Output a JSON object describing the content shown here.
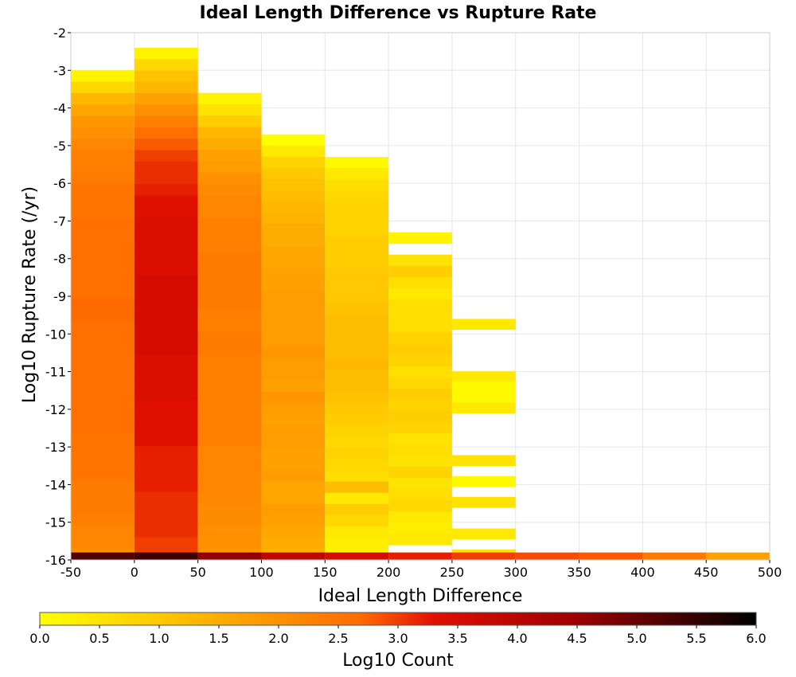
{
  "chart_data": {
    "type": "heatmap",
    "title": "Ideal Length Difference vs Rupture Rate",
    "xlabel": "Ideal Length Difference",
    "ylabel": "Log10 Rupture Rate (/yr)",
    "xlim": [
      -50,
      500
    ],
    "ylim": [
      -16,
      -2
    ],
    "x_ticks": [
      "-50",
      "0",
      "50",
      "100",
      "150",
      "200",
      "250",
      "300",
      "350",
      "400",
      "450",
      "500"
    ],
    "y_ticks": [
      "-2",
      "-3",
      "-4",
      "-5",
      "-6",
      "-7",
      "-8",
      "-9",
      "-10",
      "-11",
      "-12",
      "-13",
      "-14",
      "-15",
      "-16"
    ],
    "grid": true,
    "colorbar": {
      "label": "Log10 Count",
      "min": 0.0,
      "max": 6.0,
      "ticks": [
        "0.0",
        "0.5",
        "1.0",
        "1.5",
        "2.0",
        "2.5",
        "3.0",
        "3.5",
        "4.0",
        "4.5",
        "5.0",
        "5.5",
        "6.0"
      ],
      "colormap": "hot (reversed): yellow to red to black"
    },
    "bin_width_x": 50,
    "bin_height_y": 0.3,
    "bins": [
      {
        "x_start": -50,
        "y_top": -3.0,
        "y_bottom": -16.0,
        "values": [
          0.2,
          0.7,
          1.3,
          1.6,
          1.9,
          2.0,
          2.2,
          2.3,
          2.3,
          2.4,
          2.5,
          2.5,
          2.5,
          2.6,
          2.6,
          2.6,
          2.6,
          2.6,
          2.6,
          2.6,
          2.7,
          2.7,
          2.6,
          2.6,
          2.6,
          2.6,
          2.6,
          2.6,
          2.6,
          2.6,
          2.6,
          2.6,
          2.5,
          2.5,
          2.5,
          2.5,
          2.4,
          2.4,
          2.4,
          2.3,
          2.2,
          2.2,
          2.0
        ]
      },
      {
        "x_start": 0,
        "y_top": -2.4,
        "y_bottom": -16.0,
        "values": [
          0.2,
          0.7,
          1.1,
          1.3,
          1.7,
          2.0,
          2.3,
          2.6,
          2.8,
          3.0,
          3.1,
          3.1,
          3.2,
          3.3,
          3.3,
          3.4,
          3.4,
          3.4,
          3.4,
          3.4,
          3.5,
          3.5,
          3.5,
          3.5,
          3.5,
          3.5,
          3.5,
          3.4,
          3.4,
          3.4,
          3.4,
          3.3,
          3.3,
          3.3,
          3.3,
          3.2,
          3.2,
          3.2,
          3.2,
          3.1,
          3.1,
          3.1,
          3.1,
          3.0,
          3.0
        ]
      },
      {
        "x_start": 50,
        "y_top": -3.6,
        "y_bottom": -16.0,
        "values": [
          0.2,
          0.5,
          0.9,
          1.3,
          1.5,
          1.7,
          1.8,
          2.0,
          2.1,
          2.2,
          2.2,
          2.3,
          2.3,
          2.3,
          2.4,
          2.4,
          2.4,
          2.4,
          2.4,
          2.3,
          2.3,
          2.4,
          2.4,
          2.3,
          2.3,
          2.3,
          2.3,
          2.3,
          2.3,
          2.3,
          2.3,
          2.2,
          2.2,
          2.2,
          2.2,
          2.2,
          2.1,
          2.1,
          2.0,
          2.0,
          1.9
        ]
      },
      {
        "x_start": 100,
        "y_top": -4.7,
        "y_bottom": -16.0,
        "values": [
          0.0,
          0.4,
          0.8,
          1.0,
          1.1,
          1.2,
          1.3,
          1.4,
          1.5,
          1.5,
          1.6,
          1.6,
          1.7,
          1.7,
          1.8,
          1.8,
          1.8,
          1.8,
          1.8,
          1.9,
          1.8,
          1.8,
          1.7,
          1.9,
          1.8,
          1.7,
          1.8,
          1.8,
          1.7,
          1.7,
          1.8,
          1.6,
          1.6,
          1.8,
          1.7,
          1.6,
          1.5,
          1.4
        ]
      },
      {
        "x_start": 150,
        "y_top": -5.3,
        "y_bottom": -16.0,
        "values": [
          0.1,
          0.4,
          0.6,
          0.7,
          0.8,
          0.8,
          0.8,
          0.9,
          0.9,
          0.9,
          1.0,
          1.0,
          1.0,
          1.1,
          1.2,
          1.2,
          1.2,
          1.2,
          1.3,
          1.2,
          1.2,
          1.1,
          1.0,
          0.9,
          0.8,
          0.7,
          0.8,
          0.7,
          0.6,
          1.2,
          0.4,
          0.9,
          0.7,
          0.4,
          0.3,
          0.2
        ]
      },
      {
        "x_start": 200,
        "y_top": -7.3,
        "y_bottom": -15.6,
        "values": [
          0.2,
          null,
          0.5,
          0.9,
          0.6,
          0.4,
          0.6,
          0.6,
          0.6,
          0.8,
          0.9,
          0.8,
          0.6,
          0.7,
          0.9,
          0.8,
          0.9,
          0.8,
          0.5,
          0.6,
          0.5,
          0.8,
          0.5,
          0.6,
          0.7,
          0.4,
          0.3,
          0.4
        ]
      },
      {
        "x_start": 250,
        "y_top": -9.6,
        "y_bottom": -16.0,
        "values": [
          0.4,
          null,
          null,
          null,
          null,
          0.4,
          0.1,
          0.1,
          0.4,
          null,
          null,
          null,
          null,
          0.5,
          null,
          0.1,
          null,
          0.5,
          null,
          null,
          0.4,
          null,
          0.5
        ]
      },
      {
        "x_start": 300,
        "y_top": -15.95,
        "y_bottom": -16.0,
        "values": [
          2.9
        ]
      },
      {
        "x_start": 350,
        "y_top": -15.95,
        "y_bottom": -16.0,
        "values": [
          2.8
        ]
      },
      {
        "x_start": 400,
        "y_top": -15.95,
        "y_bottom": -16.0,
        "values": [
          2.4
        ]
      },
      {
        "x_start": 450,
        "y_top": -15.95,
        "y_bottom": -16.0,
        "values": [
          1.7
        ]
      }
    ],
    "bottom_row": {
      "y_top": -15.95,
      "y_bottom": -16.0,
      "values_by_x_start": {
        "-50": 5.2,
        "0": 5.4,
        "50": 4.6,
        "100": 3.9,
        "150": 3.5,
        "200": 3.2,
        "250": 3.0
      }
    }
  }
}
